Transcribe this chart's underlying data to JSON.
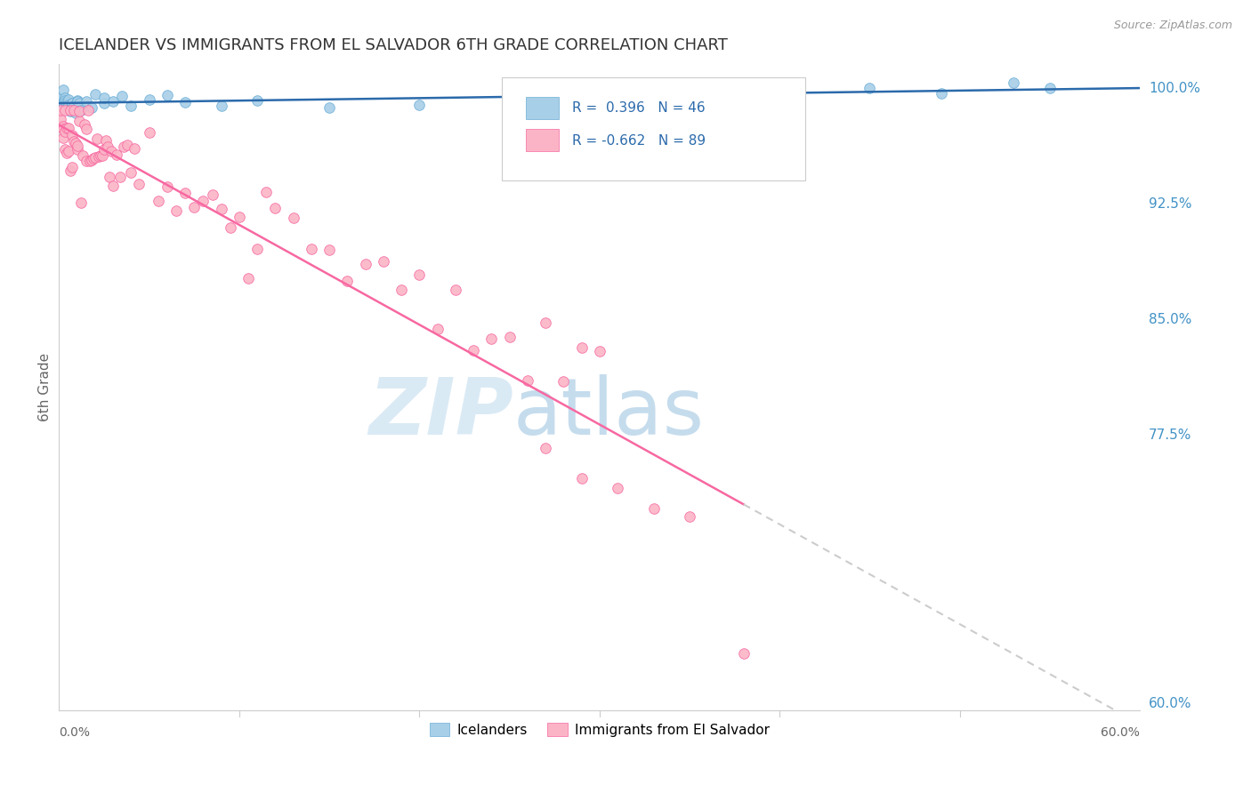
{
  "title": "ICELANDER VS IMMIGRANTS FROM EL SALVADOR 6TH GRADE CORRELATION CHART",
  "source": "Source: ZipAtlas.com",
  "ylabel": "6th Grade",
  "y_tick_values": [
    0.6,
    0.775,
    0.85,
    0.925,
    1.0
  ],
  "y_tick_labels": [
    "60.0%",
    "77.5%",
    "85.0%",
    "92.5%",
    "100.0%"
  ],
  "xlim": [
    0.0,
    0.6
  ],
  "ylim": [
    0.595,
    1.015
  ],
  "icelander_color": "#a8cfe8",
  "icelander_edge": "#6aaed6",
  "immigrant_color": "#fbb4c6",
  "immigrant_edge": "#f768a1",
  "trendline_ice_color": "#2b6aab",
  "trendline_imm_color": "#f768a1",
  "trendline_ext_color": "#cccccc",
  "R_ice": 0.396,
  "N_ice": 46,
  "R_imm": -0.662,
  "N_imm": 89,
  "legend_label_ice": "Icelanders",
  "legend_label_imm": "Immigrants from El Salvador",
  "background_color": "#ffffff",
  "grid_color": "#dddddd",
  "title_color": "#333333",
  "axis_label_color": "#666666",
  "right_axis_color": "#4292c6",
  "source_color": "#999999"
}
